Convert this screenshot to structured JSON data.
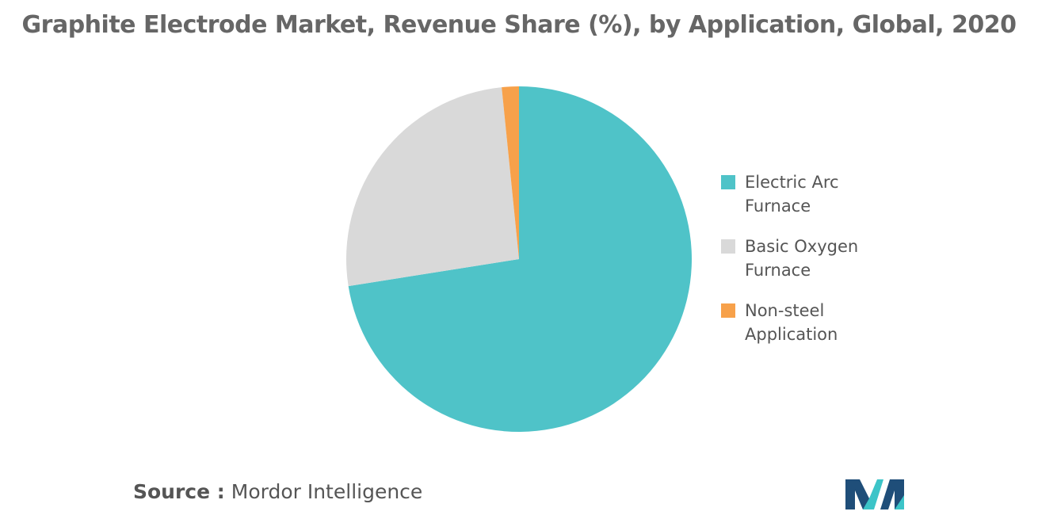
{
  "chart_data": {
    "type": "pie",
    "title": "Graphite Electrode Market, Revenue Share (%), by Application, Global, 2020",
    "categories": [
      "Electric Arc Furnace",
      "Basic Oxygen Furnace",
      "Non-steel Application"
    ],
    "values": [
      72.5,
      25.9,
      1.6
    ],
    "unit": "%",
    "colors": [
      "#4fc3c8",
      "#d9d9d9",
      "#f7a14a"
    ],
    "legend_position": "right",
    "start_angle_deg": 0,
    "direction": "clockwise"
  },
  "legend": {
    "items": [
      {
        "label": "Electric Arc Furnace",
        "color": "#4fc3c8"
      },
      {
        "label": "Basic Oxygen Furnace",
        "color": "#d9d9d9"
      },
      {
        "label": "Non-steel Application",
        "color": "#f7a14a"
      }
    ]
  },
  "source": {
    "label": "Source :",
    "value": "Mordor Intelligence"
  },
  "logo": {
    "name": "mordor-intelligence-logo",
    "colors": [
      "#1f4e79",
      "#3cc4c8"
    ]
  }
}
